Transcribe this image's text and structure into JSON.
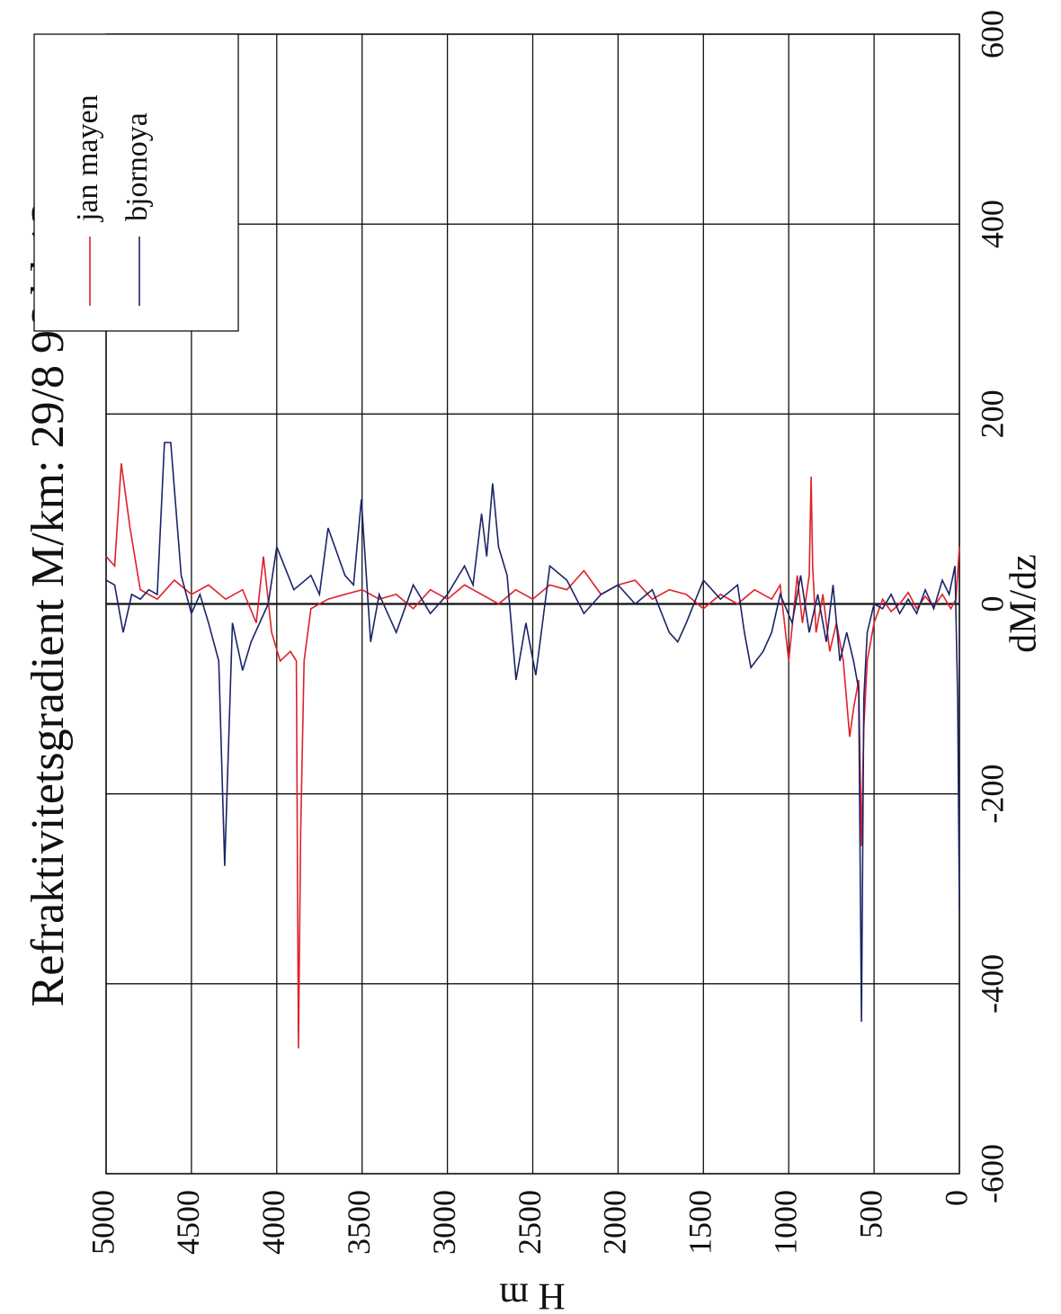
{
  "chart_data": {
    "type": "line",
    "title": "Refraktivitetsgradient M/km: 29/8 96 kl 12",
    "xlabel": "dM/dz",
    "ylabel": "H m",
    "xlim": [
      -600,
      600
    ],
    "xticks": [
      -600,
      -400,
      -200,
      0,
      200,
      400,
      600
    ],
    "ylim": [
      0,
      5000
    ],
    "yticks": [
      0,
      500,
      1000,
      1500,
      2000,
      2500,
      3000,
      3500,
      4000,
      4500,
      5000
    ],
    "grid": true,
    "legend": "upper right",
    "series": [
      {
        "name": "jan mayen",
        "color": "#e0202a",
        "y": [
          0,
          20,
          50,
          100,
          150,
          200,
          250,
          300,
          350,
          400,
          450,
          500,
          540,
          560,
          574,
          590,
          620,
          643,
          680,
          720,
          760,
          800,
          840,
          860,
          869,
          880,
          920,
          950,
          1000,
          1050,
          1100,
          1200,
          1300,
          1400,
          1500,
          1600,
          1700,
          1800,
          1900,
          2000,
          2100,
          2200,
          2300,
          2400,
          2500,
          2600,
          2700,
          2800,
          2900,
          3000,
          3100,
          3200,
          3300,
          3400,
          3500,
          3600,
          3700,
          3800,
          3840,
          3860,
          3873,
          3885,
          3920,
          3980,
          4030,
          4078,
          4120,
          4200,
          4300,
          4400,
          4500,
          4600,
          4700,
          4800,
          4860,
          4911,
          4950,
          5000
        ],
        "values": [
          60,
          5,
          -5,
          10,
          -3,
          8,
          -5,
          12,
          0,
          -8,
          5,
          -20,
          -60,
          -130,
          -255,
          -80,
          -110,
          -140,
          -60,
          -20,
          -50,
          10,
          -30,
          40,
          134,
          30,
          -20,
          30,
          -60,
          20,
          5,
          15,
          0,
          10,
          -5,
          10,
          15,
          5,
          25,
          20,
          10,
          35,
          15,
          20,
          5,
          15,
          0,
          10,
          20,
          5,
          15,
          -5,
          10,
          5,
          15,
          10,
          5,
          -5,
          -60,
          -240,
          -468,
          -60,
          -50,
          -60,
          -30,
          50,
          -20,
          15,
          5,
          20,
          10,
          25,
          5,
          15,
          80,
          148,
          40,
          50
        ]
      },
      {
        "name": "bjornoya",
        "color": "#1a2468",
        "y": [
          0,
          10,
          26,
          60,
          100,
          150,
          200,
          250,
          300,
          350,
          400,
          450,
          500,
          540,
          560,
          574,
          590,
          620,
          660,
          700,
          740,
          780,
          830,
          880,
          930,
          980,
          1050,
          1100,
          1150,
          1222,
          1260,
          1300,
          1400,
          1500,
          1600,
          1650,
          1700,
          1800,
          1900,
          2000,
          2100,
          2200,
          2300,
          2400,
          2482,
          2540,
          2598,
          2650,
          2700,
          2735,
          2770,
          2800,
          2850,
          2900,
          3000,
          3100,
          3200,
          3300,
          3400,
          3450,
          3504,
          3550,
          3600,
          3699,
          3750,
          3800,
          3900,
          4000,
          4050,
          4150,
          4200,
          4260,
          4305,
          4340,
          4400,
          4450,
          4500,
          4560,
          4621,
          4658,
          4700,
          4750,
          4800,
          4850,
          4900,
          4950,
          5000
        ],
        "values": [
          -321,
          -100,
          40,
          10,
          25,
          -5,
          15,
          -10,
          5,
          -10,
          10,
          -5,
          0,
          -30,
          -100,
          -440,
          -90,
          -60,
          -30,
          -60,
          20,
          -40,
          10,
          -30,
          30,
          -20,
          10,
          -30,
          -50,
          -67,
          -30,
          20,
          5,
          25,
          -20,
          -40,
          -30,
          15,
          0,
          20,
          10,
          -10,
          25,
          40,
          -75,
          -20,
          -80,
          30,
          60,
          127,
          50,
          95,
          20,
          40,
          10,
          -10,
          20,
          -30,
          10,
          -40,
          110,
          20,
          30,
          80,
          10,
          30,
          15,
          60,
          0,
          -40,
          -70,
          -20,
          -276,
          -60,
          -20,
          10,
          -10,
          30,
          170,
          170,
          10,
          15,
          5,
          10,
          -30,
          20,
          25
        ]
      }
    ]
  }
}
